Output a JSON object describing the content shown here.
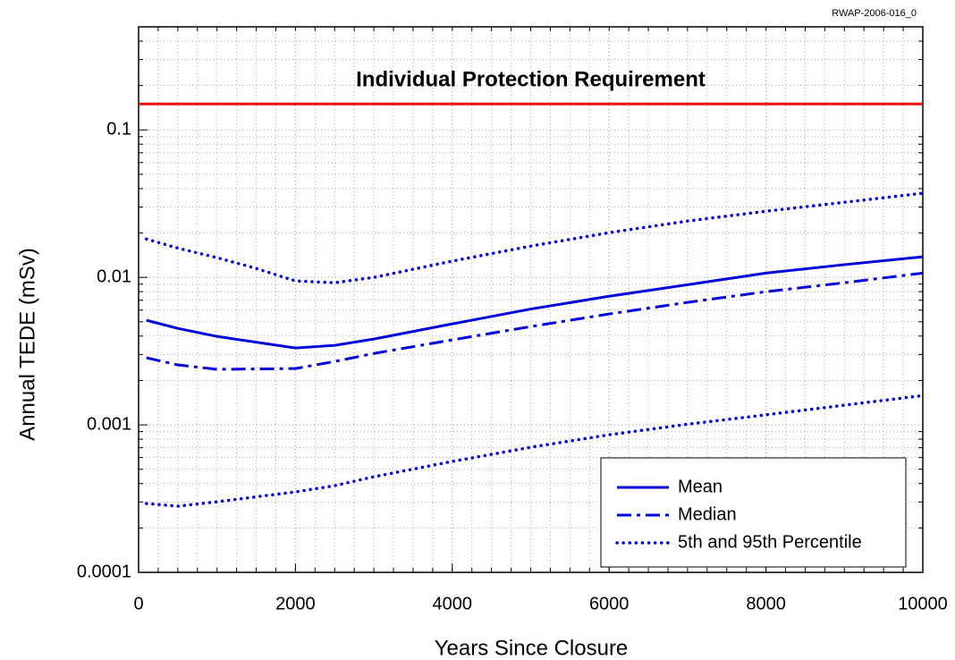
{
  "chart_data": {
    "type": "line",
    "corner_note": "RWAP-2006-016_0",
    "x_label": "Years Since Closure",
    "y_label": "Annual TEDE (mSv)",
    "xlim": [
      0,
      10000
    ],
    "xticks": [
      0,
      2000,
      4000,
      6000,
      8000,
      10000
    ],
    "ylim": [
      0.0001,
      0.5
    ],
    "yticks": [
      0.0001,
      0.001,
      0.01,
      0.1
    ],
    "log_y": true,
    "grid": true,
    "legend": "lower right",
    "reference_line": {
      "value": 0.15,
      "label": "Individual Protection Requirement",
      "color": "#ee1111"
    },
    "series": [
      {
        "name": "Mean",
        "style": "solid",
        "color": "#0000dd",
        "x": [
          100,
          500,
          1000,
          2000,
          2500,
          3000,
          4000,
          5000,
          6000,
          7000,
          8000,
          9000,
          10000
        ],
        "values": [
          0.00512,
          0.00451,
          0.00398,
          0.00332,
          0.00346,
          0.00382,
          0.00484,
          0.0061,
          0.00745,
          0.00892,
          0.0107,
          0.0122,
          0.0138
        ]
      },
      {
        "name": "Median",
        "style": "dashdot",
        "color": "#0000dd",
        "x": [
          100,
          500,
          1000,
          2000,
          2500,
          3000,
          4000,
          5000,
          6000,
          7000,
          8000,
          9000,
          10000
        ],
        "values": [
          0.00285,
          0.00255,
          0.00238,
          0.00241,
          0.00269,
          0.00305,
          0.00377,
          0.00464,
          0.00565,
          0.00677,
          0.008,
          0.0092,
          0.0107
        ]
      },
      {
        "name": "5th and 95th Percentile",
        "style": "dotted",
        "color": "#0000dd",
        "x": [
          100,
          500,
          1000,
          1500,
          2000,
          2500,
          3000,
          4000,
          5000,
          6000,
          7000,
          8000,
          9000,
          10000
        ],
        "values": [
          0.0182,
          0.0158,
          0.0136,
          0.0115,
          0.00946,
          0.0092,
          0.01,
          0.0129,
          0.0163,
          0.0201,
          0.0241,
          0.0281,
          0.0323,
          0.0372
        ]
      },
      {
        "style": "dotted",
        "color": "#0000dd",
        "x": [
          100,
          500,
          1000,
          2000,
          2500,
          3000,
          4000,
          5000,
          6000,
          7000,
          8000,
          9000,
          10000
        ],
        "values": [
          0.000293,
          0.000281,
          0.000301,
          0.000351,
          0.000387,
          0.000445,
          0.000565,
          0.000705,
          0.000857,
          0.00101,
          0.00117,
          0.00136,
          0.00158
        ]
      }
    ]
  }
}
